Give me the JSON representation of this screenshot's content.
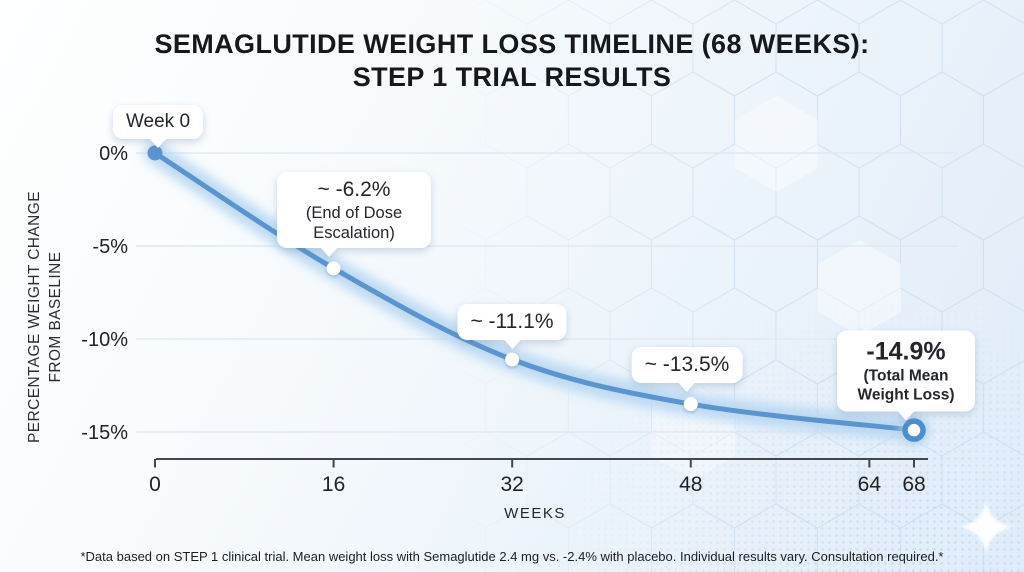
{
  "title": {
    "line1": "SEMAGLUTIDE WEIGHT LOSS TIMELINE (68 WEEKS):",
    "line2": "STEP 1 TRIAL RESULTS"
  },
  "footnote": "*Data based on STEP 1 clinical trial. Mean weight loss with Semaglutide 2.4 mg vs. -2.4% with placebo. Individual results vary. Consultation required.*",
  "colors": {
    "line": "#5b94cf",
    "line_glow": "#b4d4f2",
    "end_ring": "#4d8ecf",
    "axis": "#43464c",
    "gridline": "#dfe5ed",
    "tooltip_bg": "#ffffff",
    "text_dark": "#17181b"
  },
  "chart_data": {
    "type": "line",
    "title": "SEMAGLUTIDE WEIGHT LOSS TIMELINE (68 WEEKS): STEP 1 TRIAL RESULTS",
    "xlabel": "WEEKS",
    "ylabel": "PERCENTAGE WEIGHT CHANGE FROM BASELINE",
    "ylabel_lines": [
      "PERCENTAGE WEIGHT CHANGE",
      "FROM BASELINE"
    ],
    "x": [
      0,
      16,
      32,
      48,
      68
    ],
    "y": [
      0,
      -6.2,
      -11.1,
      -13.5,
      -14.9
    ],
    "x_ticks": [
      0,
      16,
      32,
      48,
      64,
      68
    ],
    "y_ticks": [
      "0%",
      "-5%",
      "-10%",
      "-15%"
    ],
    "y_tick_values": [
      0,
      -5,
      -10,
      -15
    ],
    "xlim": [
      0,
      68
    ],
    "ylim": [
      -15,
      0
    ],
    "grid": "horizontal-only",
    "legend": "none",
    "annotations": [
      {
        "point_week": 0,
        "lines": [
          "Week 0"
        ]
      },
      {
        "point_week": 16,
        "lines": [
          "~ -6.2%",
          "(End of Dose Escalation)"
        ]
      },
      {
        "point_week": 32,
        "lines": [
          "~ -11.1%"
        ]
      },
      {
        "point_week": 48,
        "lines": [
          "~ -13.5%"
        ]
      },
      {
        "point_week": 68,
        "lines": [
          "-14.9%",
          "(Total Mean Weight Loss)"
        ]
      }
    ]
  }
}
